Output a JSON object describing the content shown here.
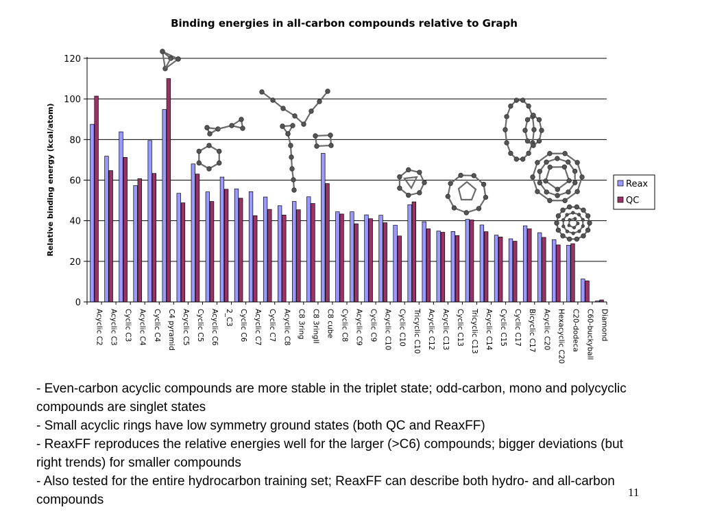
{
  "slide": {
    "number": "11",
    "notes": [
      "- Even-carbon acyclic compounds are more stable in the triplet state; odd-carbon, mono and polycyclic compounds are singlet states",
      "- Small acyclic rings have low symmetry ground states (both QC and ReaxFF)",
      "- ReaxFF reproduces the relative energies well for the larger (>C6) compounds; bigger deviations (but right trends) for smaller compounds",
      "- Also tested for the entire hydrocarbon training set; ReaxFF can describe both hydro- and all-carbon compounds"
    ]
  },
  "chart_data": {
    "type": "bar",
    "title": "Binding energies in all-carbon compounds relative to Graph",
    "xlabel": "",
    "ylabel": "Relative binding energy (kcal/atom)",
    "ylim": [
      0,
      120
    ],
    "yticks": [
      0,
      20,
      40,
      60,
      80,
      100,
      120
    ],
    "grid": "horizontal",
    "legend_position": "right",
    "categories": [
      "Acyclic C2",
      "Acyclic C3",
      "Cyclic C3",
      "Acyclic C4",
      "Cyclic C4",
      "C4 pyramid",
      "Acyclic C5",
      "Cyclic C5",
      "Acyclic C6",
      "2_C3",
      "Cyclic C6",
      "Acyclic C7",
      "Cyclic C7",
      "Acyclic C8",
      "C8 3ring",
      "C8 3ringII",
      "C8 cube",
      "Cyclic C8",
      "Acyclic C9",
      "Cyclic C9",
      "Acyclic C10",
      "Cyclic C10",
      "Tricyclic C10",
      "Acyclic C12",
      "Acyclic C13",
      "Cyclic C13",
      "Tricyclic C13",
      "Acyclic C14",
      "Cyclic C15",
      "Cyclic C17",
      "Bicyclic C17",
      "Acyclic C20",
      "Hexacyclic C20",
      "C20-dodeca",
      "C60-buckyball",
      "Diamond"
    ],
    "series": [
      {
        "name": "Reax",
        "color": "#9999ff",
        "values": [
          87.5,
          71.8,
          83.8,
          57.3,
          79.5,
          94.8,
          53.5,
          68.0,
          54.2,
          61.5,
          55.7,
          54.3,
          51.7,
          47.4,
          49.5,
          51.8,
          73.2,
          44.4,
          44.4,
          42.9,
          42.7,
          37.8,
          47.9,
          39.5,
          34.9,
          34.7,
          40.7,
          37.9,
          32.9,
          31.1,
          37.5,
          34.1,
          30.7,
          27.9,
          11.3,
          0.5
        ]
      },
      {
        "name": "QC",
        "color": "#993366",
        "values": [
          101.4,
          64.7,
          71.2,
          60.7,
          63.3,
          110.0,
          48.8,
          63.0,
          49.5,
          55.5,
          51.1,
          42.5,
          45.6,
          42.8,
          45.4,
          48.5,
          58.3,
          43.3,
          38.5,
          41.0,
          39.0,
          32.5,
          49.3,
          36.0,
          34.3,
          32.7,
          40.4,
          34.6,
          32.0,
          29.9,
          36.0,
          31.8,
          28.1,
          28.7,
          10.4,
          1.0
        ]
      }
    ]
  }
}
